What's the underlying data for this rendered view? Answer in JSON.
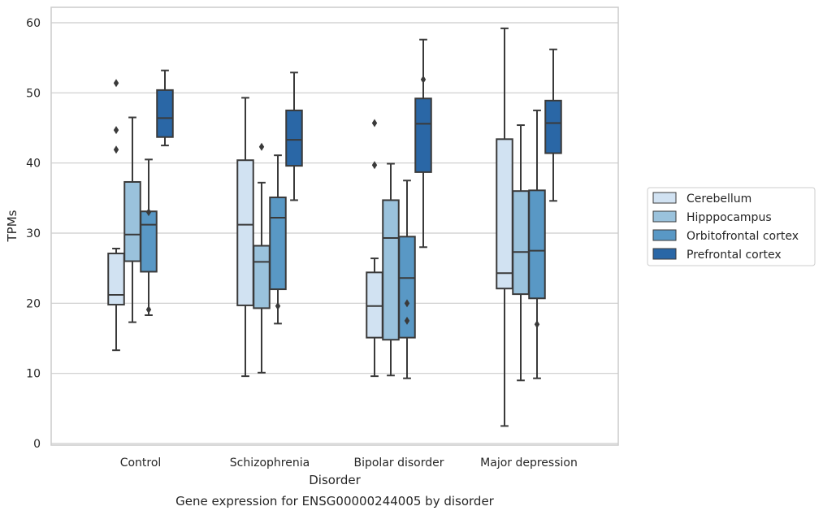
{
  "chart_data": {
    "type": "boxplot",
    "title": "Gene expression for ENSG00000244005 by disorder",
    "xlabel": "Disorder",
    "ylabel": "TPMs",
    "ylim": [
      0,
      62
    ],
    "yticks": [
      0,
      10,
      20,
      30,
      40,
      50,
      60
    ],
    "grid": true,
    "legend_position": "right",
    "categories": [
      "Control",
      "Schizophrenia",
      "Bipolar disorder",
      "Major depression"
    ],
    "series": [
      {
        "name": "Cerebellum",
        "color": "#d1e2f2",
        "boxes": [
          {
            "whislo": 13.3,
            "q1": 19.8,
            "med": 21.2,
            "q3": 27.1,
            "whishi": 27.8,
            "fliers": [
              41.9,
              44.7,
              51.4
            ]
          },
          {
            "whislo": 9.6,
            "q1": 19.7,
            "med": 31.2,
            "q3": 40.4,
            "whishi": 49.3,
            "fliers": []
          },
          {
            "whislo": 9.6,
            "q1": 15.1,
            "med": 19.6,
            "q3": 24.4,
            "whishi": 26.4,
            "fliers": [
              39.7,
              45.7
            ]
          },
          {
            "whislo": 2.5,
            "q1": 22.1,
            "med": 24.3,
            "q3": 43.4,
            "whishi": 59.2,
            "fliers": []
          }
        ]
      },
      {
        "name": "Hipppocampus",
        "color": "#9ac2dc",
        "boxes": [
          {
            "whislo": 17.3,
            "q1": 26.0,
            "med": 29.8,
            "q3": 37.3,
            "whishi": 46.5,
            "fliers": []
          },
          {
            "whislo": 10.1,
            "q1": 19.3,
            "med": 25.9,
            "q3": 28.2,
            "whishi": 37.2,
            "fliers": [
              42.3
            ]
          },
          {
            "whislo": 9.7,
            "q1": 14.8,
            "med": 29.3,
            "q3": 34.7,
            "whishi": 39.9,
            "fliers": []
          },
          {
            "whislo": 9.0,
            "q1": 21.3,
            "med": 27.3,
            "q3": 36.0,
            "whishi": 45.4,
            "fliers": []
          }
        ]
      },
      {
        "name": "Orbitofrontal cortex",
        "color": "#5998c5",
        "boxes": [
          {
            "whislo": 18.3,
            "q1": 24.5,
            "med": 31.2,
            "q3": 33.1,
            "whishi": 40.5,
            "fliers": [
              19.1,
              33.0
            ]
          },
          {
            "whislo": 17.1,
            "q1": 22.0,
            "med": 32.2,
            "q3": 35.1,
            "whishi": 41.1,
            "fliers": [
              19.6
            ]
          },
          {
            "whislo": 9.3,
            "q1": 15.1,
            "med": 23.6,
            "q3": 29.5,
            "whishi": 37.5,
            "fliers": [
              17.5,
              20.0
            ]
          },
          {
            "whislo": 9.3,
            "q1": 20.7,
            "med": 27.5,
            "q3": 36.1,
            "whishi": 47.5,
            "fliers": [
              17.0
            ]
          }
        ]
      },
      {
        "name": "Prefrontal cortex",
        "color": "#2a67a6",
        "boxes": [
          {
            "whislo": 42.5,
            "q1": 43.7,
            "med": 46.4,
            "q3": 50.4,
            "whishi": 53.2,
            "fliers": []
          },
          {
            "whislo": 34.7,
            "q1": 39.6,
            "med": 43.3,
            "q3": 47.5,
            "whishi": 52.9,
            "fliers": []
          },
          {
            "whislo": 28.0,
            "q1": 38.7,
            "med": 45.6,
            "q3": 49.2,
            "whishi": 57.6,
            "fliers": [
              51.9
            ]
          },
          {
            "whislo": 34.6,
            "q1": 41.4,
            "med": 45.7,
            "q3": 48.9,
            "whishi": 56.2,
            "fliers": []
          }
        ]
      }
    ]
  }
}
